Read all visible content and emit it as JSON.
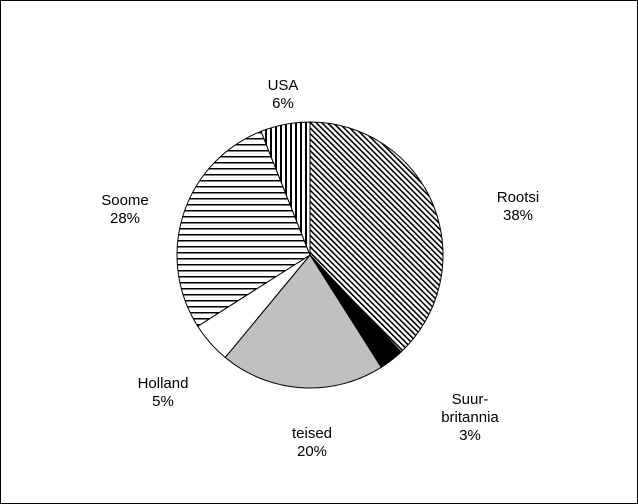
{
  "chart_data": {
    "type": "pie",
    "categories": [
      "Rootsi",
      "Suur-britannia",
      "teised",
      "Holland",
      "Soome",
      "USA"
    ],
    "values": [
      38,
      3,
      20,
      5,
      28,
      6
    ],
    "value_labels": [
      "38%",
      "3%",
      "20%",
      "5%",
      "28%",
      "6%"
    ],
    "fills": [
      "diagonal",
      "#000000",
      "#c0c0c0",
      "#ffffff",
      "horizontal",
      "vertical"
    ]
  }
}
